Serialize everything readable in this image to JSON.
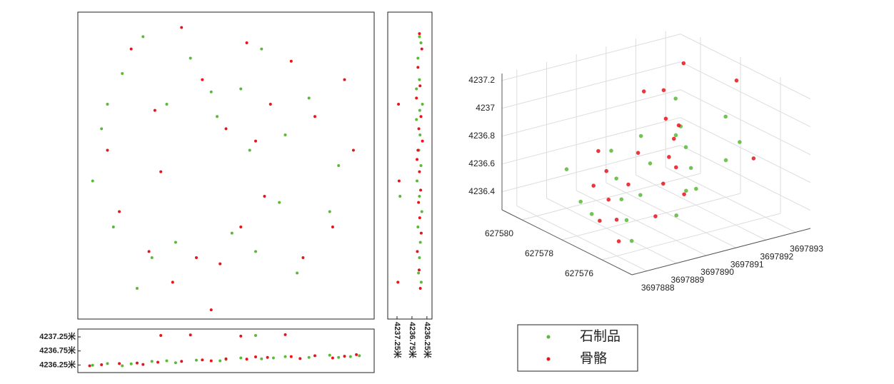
{
  "chart_data": [
    {
      "type": "scatter",
      "xlim": [
        0,
        100
      ],
      "ylim": [
        0,
        100
      ],
      "series": [
        {
          "color": "#5cb83a",
          "x": [
            8,
            15,
            22,
            30,
            38,
            47,
            55,
            62,
            70,
            78,
            88,
            5,
            12,
            25,
            52,
            60,
            68,
            74,
            20,
            45,
            33,
            58,
            85,
            10
          ],
          "y": [
            62,
            80,
            92,
            70,
            85,
            66,
            75,
            88,
            60,
            72,
            50,
            45,
            30,
            20,
            28,
            22,
            38,
            15,
            10,
            74,
            25,
            55,
            35,
            70
          ]
        },
        {
          "color": "#e8141c",
          "x": [
            10,
            18,
            26,
            35,
            42,
            50,
            57,
            65,
            72,
            80,
            90,
            93,
            14,
            24,
            32,
            48,
            55,
            63,
            76,
            86,
            28,
            40,
            60,
            45
          ],
          "y": [
            55,
            88,
            68,
            95,
            78,
            62,
            90,
            70,
            84,
            66,
            78,
            55,
            35,
            22,
            12,
            18,
            30,
            40,
            20,
            30,
            48,
            20,
            58,
            3
          ]
        }
      ]
    },
    {
      "type": "scatter",
      "xlim": [
        0,
        100
      ],
      "ylim": [
        4235.98,
        4237.53
      ],
      "yticks": [
        {
          "value": 4236.25,
          "label": "4236.25米"
        },
        {
          "value": 4236.75,
          "label": "4236.75米"
        },
        {
          "value": 4237.25,
          "label": "4237.25米"
        }
      ],
      "series": [
        {
          "color": "#5cb83a",
          "x": [
            5,
            10,
            18,
            25,
            33,
            40,
            48,
            55,
            62,
            70,
            78,
            85,
            92,
            15,
            30,
            50,
            66,
            88,
            95,
            60
          ],
          "y": [
            4236.24,
            4236.3,
            4236.29,
            4236.38,
            4236.33,
            4236.42,
            4236.4,
            4236.5,
            4236.47,
            4236.55,
            4236.52,
            4236.6,
            4236.55,
            4236.22,
            4236.4,
            4236.45,
            4236.5,
            4236.52,
            4236.58,
            4237.3
          ]
        },
        {
          "color": "#e8141c",
          "x": [
            4,
            8,
            14,
            20,
            27,
            35,
            42,
            50,
            57,
            64,
            72,
            80,
            86,
            94,
            22,
            45,
            60,
            75,
            90,
            28,
            38,
            55,
            70
          ],
          "y": [
            4236.22,
            4236.26,
            4236.3,
            4236.32,
            4236.35,
            4236.38,
            4236.43,
            4236.47,
            4236.46,
            4236.52,
            4236.55,
            4236.58,
            4236.5,
            4236.62,
            4236.27,
            4236.4,
            4236.54,
            4236.48,
            4236.56,
            4237.3,
            4237.32,
            4237.28,
            4237.33
          ]
        }
      ]
    },
    {
      "type": "scatter",
      "xlim": [
        4237.56,
        4236.08
      ],
      "ylim": [
        0,
        100
      ],
      "xticks": [
        {
          "value": 4237.25,
          "label": "4237.25米"
        },
        {
          "value": 4236.75,
          "label": "4236.75米"
        },
        {
          "value": 4236.25,
          "label": "4236.25米"
        }
      ],
      "series": [
        {
          "color": "#5cb83a",
          "x": [
            4236.45,
            4236.55,
            4236.5,
            4236.4,
            4236.6,
            4236.48,
            4236.52,
            4236.45,
            4236.58,
            4236.5,
            4236.42,
            4236.55,
            4236.47,
            4236.5,
            4236.53,
            4236.44,
            4236.6,
            4236.49,
            4237.15,
            4236.5
          ],
          "y": [
            90,
            85,
            78,
            70,
            65,
            60,
            55,
            50,
            45,
            40,
            35,
            30,
            25,
            20,
            15,
            12,
            75,
            68,
            40,
            92
          ]
        },
        {
          "color": "#e8141c",
          "x": [
            4236.5,
            4236.42,
            4236.55,
            4236.48,
            4236.6,
            4236.45,
            4236.52,
            4236.4,
            4236.58,
            4236.5,
            4236.46,
            4236.53,
            4236.49,
            4236.44,
            4236.57,
            4236.51,
            4237.2,
            4237.18,
            4237.22,
            4236.47,
            4236.55
          ],
          "y": [
            93,
            88,
            82,
            76,
            72,
            66,
            62,
            58,
            52,
            48,
            42,
            38,
            33,
            28,
            22,
            16,
            70,
            45,
            12,
            10,
            55
          ]
        }
      ]
    },
    {
      "type": "scatter3d",
      "grid": true,
      "xlim": [
        627574.5,
        627581
      ],
      "ylim": [
        3697887.5,
        3697893.5
      ],
      "zlim": [
        4236.27,
        4237.25
      ],
      "xticks": [
        627576,
        627578,
        627580
      ],
      "yticks": [
        3697888,
        3697889,
        3697890,
        3697891,
        3697892,
        3697893
      ],
      "zticks": [
        4236.4,
        4236.6,
        4236.8,
        4237,
        4237.2
      ],
      "series": [
        {
          "name": "石制品",
          "color": "#5cb83a",
          "x": [
            627576,
            627577,
            627578,
            627579,
            627580,
            627576.5,
            627577.5,
            627578.5,
            627579.5,
            627580.5,
            627576,
            627577,
            627578,
            627579,
            627580,
            627577,
            627578.5,
            627579,
            627576.5,
            627580,
            627578,
            627577.5
          ],
          "y": [
            3697888.5,
            3697889,
            3697889.5,
            3697890,
            3697890.5,
            3697891,
            3697891.5,
            3697892,
            3697892.5,
            3697893,
            3697890,
            3697891,
            3697888.5,
            3697892,
            3697889,
            3697892.8,
            3697890.8,
            3697888.8,
            3697892,
            3697891.5,
            3697893,
            3697889.8
          ],
          "z": [
            4236.35,
            4236.4,
            4236.45,
            4236.5,
            4236.6,
            4236.55,
            4236.6,
            4236.65,
            4236.7,
            4236.8,
            4236.45,
            4236.5,
            4236.4,
            4236.7,
            4236.55,
            4236.75,
            4236.6,
            4236.4,
            4236.7,
            4236.65,
            4236.85,
            4236.5
          ]
        },
        {
          "name": "骨骼",
          "color": "#e8141c",
          "x": [
            627576.2,
            627577.2,
            627578.2,
            627579.2,
            627580.2,
            627576.8,
            627577.8,
            627578.8,
            627579.8,
            627580.8,
            627576.3,
            627577.4,
            627578.6,
            627579.6,
            627580.4,
            627577.6,
            627578.4,
            627579.4,
            627580.6,
            627576.6,
            627577.9,
            627579.1
          ],
          "y": [
            3697888.2,
            3697888.8,
            3697889.2,
            3697889.8,
            3697890.2,
            3697890.8,
            3697891.2,
            3697891.8,
            3697892.2,
            3697892.8,
            3697889.5,
            3697890.5,
            3697891.5,
            3697892.5,
            3697893.2,
            3697888.5,
            3697890,
            3697891,
            3697892,
            3697893,
            3697893.3,
            3697889.3
          ],
          "z": [
            4236.35,
            4236.4,
            4236.45,
            4236.55,
            4236.6,
            4236.5,
            4236.6,
            4236.7,
            4236.75,
            4236.85,
            4236.45,
            4236.55,
            4236.6,
            4236.7,
            4237.05,
            4236.38,
            4236.5,
            4236.6,
            4236.9,
            4236.65,
            4237.1,
            4236.48
          ]
        }
      ]
    }
  ]
}
